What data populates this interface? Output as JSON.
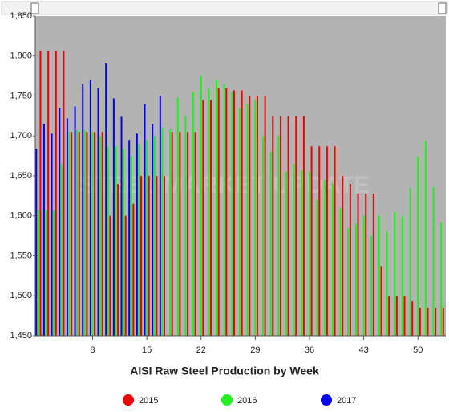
{
  "chart_data": {
    "type": "bar",
    "title": "AISI Raw Steel Production by Week",
    "watermark": "STEEL MARKET UPDATE",
    "x": [
      1,
      2,
      3,
      4,
      5,
      6,
      7,
      8,
      9,
      10,
      11,
      12,
      13,
      14,
      15,
      16,
      17,
      18,
      19,
      20,
      21,
      22,
      23,
      24,
      25,
      26,
      27,
      28,
      29,
      30,
      31,
      32,
      33,
      34,
      35,
      36,
      37,
      38,
      39,
      40,
      41,
      42,
      43,
      44,
      45,
      46,
      47,
      48,
      49,
      50,
      51,
      52,
      53
    ],
    "xlim": [
      0.6,
      53.6
    ],
    "xticks": [
      8,
      15,
      22,
      29,
      36,
      43,
      50
    ],
    "ylim": [
      1450,
      1850
    ],
    "yticks": [
      {
        "value": 1450,
        "label": "1,450"
      },
      {
        "value": 1500,
        "label": "1,500"
      },
      {
        "value": 1550,
        "label": "1,550"
      },
      {
        "value": 1600,
        "label": "1,600"
      },
      {
        "value": 1650,
        "label": "1,650"
      },
      {
        "value": 1700,
        "label": "1,700"
      },
      {
        "value": 1750,
        "label": "1,750"
      },
      {
        "value": 1800,
        "label": "1,800"
      },
      {
        "value": 1850,
        "label": "1,850"
      }
    ],
    "series": [
      {
        "name": "2015",
        "color": "#ee0000",
        "values": [
          1806,
          1806,
          1806,
          1806,
          1705,
          1705,
          1705,
          1705,
          1705,
          1600,
          1640,
          1600,
          1615,
          1650,
          1650,
          1650,
          1650,
          1705,
          1705,
          1705,
          1705,
          1745,
          1745,
          1760,
          1760,
          1757,
          1757,
          1750,
          1750,
          1750,
          1725,
          1725,
          1725,
          1725,
          1725,
          1687,
          1687,
          1687,
          1687,
          1650,
          1640,
          1628,
          1628,
          1628,
          1537,
          1500,
          1500,
          1500,
          1493,
          1485,
          1485,
          1485,
          1485
        ]
      },
      {
        "name": "2016",
        "color": "#22ee22",
        "values": [
          1607,
          1607,
          1607,
          1665,
          1705,
          1707,
          1707,
          1705,
          1700,
          1686,
          1687,
          1684,
          1675,
          1690,
          1695,
          1700,
          1710,
          1708,
          1748,
          1726,
          1755,
          1775,
          1760,
          1770,
          1765,
          1755,
          1735,
          1740,
          1745,
          1700,
          1680,
          1700,
          1655,
          1665,
          1657,
          1655,
          1620,
          1645,
          1640,
          1610,
          1585,
          1590,
          1600,
          1575,
          1600,
          1580,
          1605,
          1600,
          1635,
          1674,
          1693,
          1636,
          1592
        ]
      },
      {
        "name": "2017",
        "color": "#0000ee",
        "values": [
          1684,
          1715,
          1703,
          1735,
          1722,
          1737,
          1765,
          1770,
          1760,
          1791,
          1747,
          1724,
          1695,
          1703,
          1740,
          1715,
          1750,
          null,
          null,
          null,
          null,
          null,
          null,
          null,
          null,
          null,
          null,
          null,
          null,
          null,
          null,
          null,
          null,
          null,
          null,
          null,
          null,
          null,
          null,
          null,
          null,
          null,
          null,
          null,
          null,
          null,
          null,
          null,
          null,
          null,
          null,
          null,
          null
        ]
      }
    ]
  }
}
